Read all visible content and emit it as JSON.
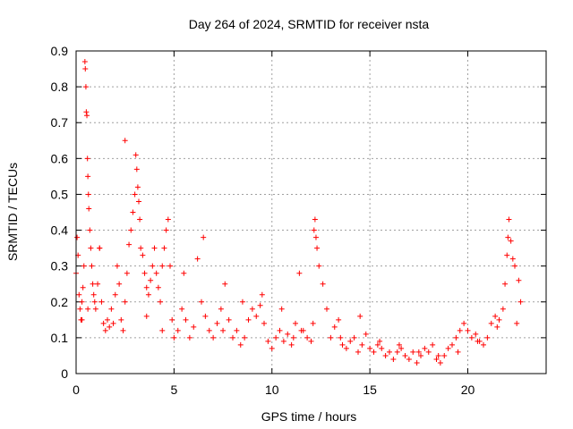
{
  "chart_data": {
    "type": "scatter",
    "title": "Day 264 of 2024, SRMTID for receiver nsta",
    "xlabel": "GPS time / hours",
    "ylabel": "SRMTID / TECUs",
    "xlim": [
      0,
      24
    ],
    "ylim": [
      0,
      0.9
    ],
    "grid": true,
    "marker": "+",
    "xticks": [
      {
        "value": 0,
        "label": "0"
      },
      {
        "value": 5,
        "label": "5"
      },
      {
        "value": 10,
        "label": "10"
      },
      {
        "value": 15,
        "label": "15"
      },
      {
        "value": 20,
        "label": "20"
      }
    ],
    "yticks": [
      {
        "value": 0,
        "label": "0"
      },
      {
        "value": 0.1,
        "label": "0.1"
      },
      {
        "value": 0.2,
        "label": "0.2"
      },
      {
        "value": 0.3,
        "label": "0.3"
      },
      {
        "value": 0.4,
        "label": "0.4"
      },
      {
        "value": 0.5,
        "label": "0.5"
      },
      {
        "value": 0.6,
        "label": "0.6"
      },
      {
        "value": 0.7,
        "label": "0.7"
      },
      {
        "value": 0.8,
        "label": "0.8"
      },
      {
        "value": 0.9,
        "label": "0.9"
      }
    ],
    "series": [
      {
        "name": "SRMTID",
        "color": "#ff0000",
        "x": [
          0.0,
          0.05,
          0.1,
          0.15,
          0.2,
          0.25,
          0.3,
          0.35,
          0.4,
          0.45,
          0.47,
          0.5,
          0.52,
          0.55,
          0.58,
          0.6,
          0.63,
          0.65,
          0.7,
          0.75,
          0.8,
          0.85,
          0.9,
          0.95,
          1.0,
          1.1,
          1.2,
          1.3,
          1.4,
          1.5,
          1.6,
          1.7,
          1.8,
          1.9,
          2.0,
          2.1,
          2.2,
          2.3,
          2.4,
          2.5,
          2.6,
          2.7,
          2.8,
          2.9,
          3.0,
          3.05,
          3.1,
          3.15,
          3.2,
          3.25,
          3.3,
          3.4,
          3.5,
          3.6,
          3.7,
          3.8,
          3.9,
          4.0,
          4.1,
          4.2,
          4.3,
          4.4,
          4.5,
          4.6,
          4.7,
          4.8,
          4.9,
          5.0,
          5.2,
          5.4,
          5.6,
          5.8,
          6.0,
          6.2,
          6.4,
          6.6,
          6.8,
          7.0,
          7.2,
          7.4,
          7.6,
          7.8,
          8.0,
          8.2,
          8.4,
          8.6,
          8.8,
          9.0,
          9.2,
          9.4,
          9.6,
          9.8,
          10.0,
          10.2,
          10.4,
          10.6,
          10.8,
          11.0,
          11.1,
          11.2,
          11.4,
          11.6,
          11.8,
          12.0,
          12.1,
          12.15,
          12.2,
          12.25,
          12.3,
          12.4,
          12.6,
          12.8,
          13.0,
          13.2,
          13.4,
          13.6,
          13.8,
          14.0,
          14.2,
          14.4,
          14.6,
          14.8,
          15.0,
          15.2,
          15.4,
          15.6,
          15.8,
          16.0,
          16.2,
          16.4,
          16.6,
          16.8,
          17.0,
          17.2,
          17.4,
          17.6,
          17.8,
          18.0,
          18.2,
          18.4,
          18.6,
          18.8,
          19.0,
          19.2,
          19.4,
          19.6,
          19.8,
          20.0,
          20.2,
          20.4,
          20.6,
          20.8,
          21.0,
          21.2,
          21.4,
          21.6,
          21.8,
          21.9,
          22.0,
          22.05,
          22.1,
          22.2,
          22.3,
          22.4,
          22.6,
          22.7,
          0.3,
          0.6,
          1.2,
          2.5,
          3.6,
          4.4,
          5.5,
          6.5,
          7.5,
          8.5,
          9.5,
          10.5,
          11.5,
          13.5,
          14.5,
          15.5,
          16.5,
          17.5,
          18.5,
          19.5,
          20.5,
          21.5,
          22.5
        ],
        "y": [
          0.28,
          0.38,
          0.33,
          0.22,
          0.18,
          0.15,
          0.2,
          0.24,
          0.3,
          0.87,
          0.85,
          0.8,
          0.73,
          0.72,
          0.6,
          0.55,
          0.5,
          0.46,
          0.4,
          0.35,
          0.3,
          0.25,
          0.22,
          0.2,
          0.18,
          0.25,
          0.35,
          0.2,
          0.14,
          0.12,
          0.15,
          0.13,
          0.18,
          0.14,
          0.22,
          0.3,
          0.25,
          0.15,
          0.12,
          0.2,
          0.28,
          0.36,
          0.4,
          0.45,
          0.5,
          0.61,
          0.57,
          0.52,
          0.48,
          0.43,
          0.35,
          0.33,
          0.28,
          0.24,
          0.22,
          0.26,
          0.3,
          0.35,
          0.28,
          0.24,
          0.2,
          0.3,
          0.35,
          0.4,
          0.43,
          0.3,
          0.15,
          0.1,
          0.12,
          0.18,
          0.15,
          0.1,
          0.13,
          0.32,
          0.2,
          0.16,
          0.12,
          0.1,
          0.14,
          0.18,
          0.25,
          0.15,
          0.1,
          0.12,
          0.08,
          0.1,
          0.15,
          0.18,
          0.16,
          0.19,
          0.14,
          0.09,
          0.07,
          0.1,
          0.12,
          0.09,
          0.11,
          0.08,
          0.1,
          0.14,
          0.28,
          0.12,
          0.1,
          0.09,
          0.14,
          0.4,
          0.43,
          0.38,
          0.35,
          0.3,
          0.25,
          0.18,
          0.1,
          0.13,
          0.15,
          0.08,
          0.07,
          0.09,
          0.1,
          0.06,
          0.08,
          0.11,
          0.07,
          0.06,
          0.08,
          0.07,
          0.05,
          0.06,
          0.04,
          0.06,
          0.07,
          0.05,
          0.04,
          0.06,
          0.03,
          0.05,
          0.07,
          0.06,
          0.08,
          0.04,
          0.03,
          0.05,
          0.07,
          0.08,
          0.1,
          0.12,
          0.14,
          0.12,
          0.1,
          0.11,
          0.09,
          0.08,
          0.1,
          0.14,
          0.16,
          0.15,
          0.18,
          0.25,
          0.33,
          0.38,
          0.43,
          0.37,
          0.32,
          0.3,
          0.26,
          0.2,
          0.15,
          0.18,
          0.35,
          0.65,
          0.16,
          0.12,
          0.28,
          0.38,
          0.12,
          0.2,
          0.22,
          0.18,
          0.12,
          0.1,
          0.16,
          0.09,
          0.08,
          0.06,
          0.05,
          0.06,
          0.09,
          0.13,
          0.14
        ]
      }
    ]
  }
}
